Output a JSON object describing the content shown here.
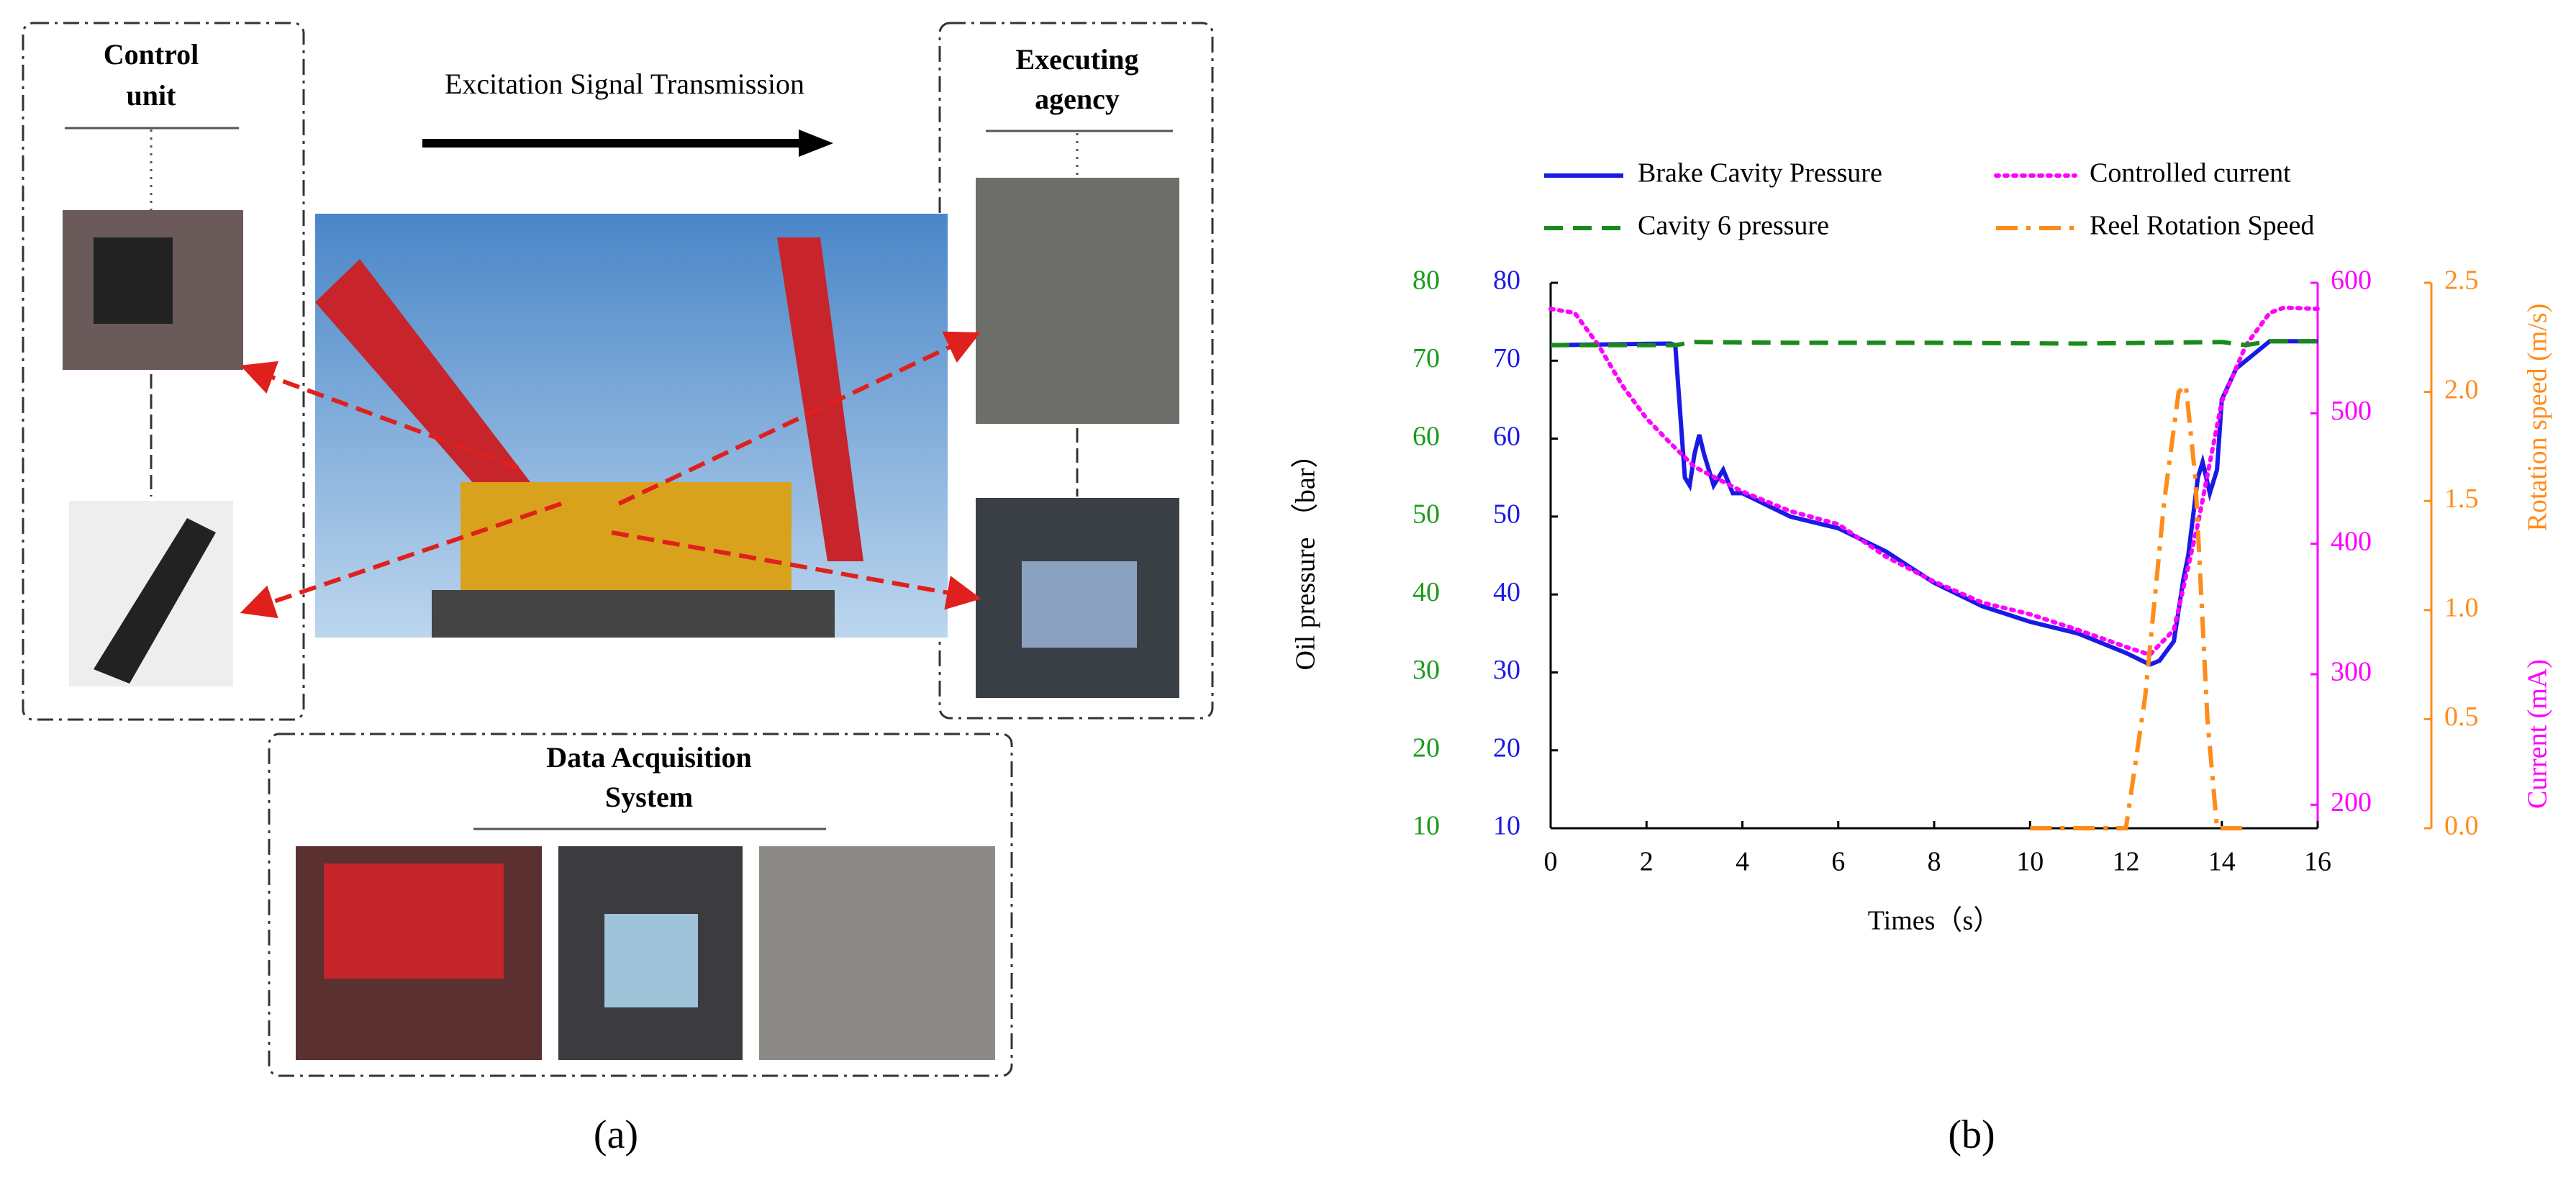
{
  "diagram": {
    "control_unit": [
      "Control",
      "unit"
    ],
    "transmission": "Excitation Signal Transmission",
    "executing_agency": [
      "Executing",
      "agency"
    ],
    "data_acquisition": [
      "Data Acquisition",
      "System"
    ],
    "label_a": "(a)",
    "label_b": "(b)"
  },
  "chart_data": {
    "type": "line",
    "xlabel": "Times（s）",
    "ylabel": "Oil pressure （bar）",
    "y2label": "Current (mA)",
    "y3label": "Rotation speed (m/s)",
    "xlim": [
      0,
      16
    ],
    "xticks": [
      0,
      2,
      4,
      6,
      8,
      10,
      12,
      14,
      16
    ],
    "ylim": [
      10,
      80
    ],
    "yticks": [
      10,
      20,
      30,
      40,
      50,
      60,
      70,
      80
    ],
    "yaxis_colors": [
      "#1a9a1a",
      "#1a1ae6"
    ],
    "y2lim": [
      182,
      600
    ],
    "y2ticks": [
      200,
      300,
      400,
      500,
      600
    ],
    "y2color": "#ff00ff",
    "y3lim": [
      0,
      2.5
    ],
    "y3ticks": [
      {
        "value": 0,
        "label": "0.0"
      },
      {
        "value": 0.5,
        "label": "0.5"
      },
      {
        "value": 1,
        "label": "1.0"
      },
      {
        "value": 1.5,
        "label": "1.5"
      },
      {
        "value": 2,
        "label": "2.0"
      },
      {
        "value": 2.5,
        "label": "2.5"
      }
    ],
    "y3color": "#ff8c1a",
    "series": [
      {
        "name": "Brake Cavity Pressure",
        "color": "#1a1ae6",
        "dash": "solid",
        "axis": "y",
        "x": [
          0,
          2.5,
          2.6,
          2.8,
          2.9,
          3.0,
          3.1,
          3.2,
          3.4,
          3.6,
          3.8,
          4,
          5,
          6,
          7,
          8,
          9,
          10,
          11,
          12,
          12.5,
          12.7,
          13,
          13.2,
          13.3,
          13.5,
          13.6,
          13.75,
          13.9,
          14,
          14.3,
          15,
          16
        ],
        "values": [
          72,
          72.2,
          72,
          55,
          54,
          58,
          60.5,
          58,
          54,
          56,
          53,
          53,
          50,
          48.5,
          45.5,
          41.5,
          38.5,
          36.5,
          35,
          32.5,
          31,
          31.5,
          34,
          42,
          45,
          55,
          57,
          53,
          56,
          65,
          69,
          72.5,
          72.5
        ]
      },
      {
        "name": "Controlled current",
        "color": "#ff00ff",
        "dash": "dotted",
        "axis": "y2",
        "x": [
          0,
          0.5,
          1,
          1.5,
          2,
          2.5,
          3,
          4,
          5,
          6,
          7,
          8,
          9,
          10,
          11,
          12,
          12.5,
          13,
          13.5,
          14,
          14.5,
          15,
          15.3,
          16
        ],
        "values": [
          580,
          577,
          552,
          521,
          496,
          477,
          459,
          440,
          425,
          415,
          390,
          371,
          355,
          346,
          334,
          321,
          315,
          334,
          415,
          509,
          552,
          577,
          581,
          580
        ]
      },
      {
        "name": "Cavity 6 pressure",
        "color": "#1a8a1a",
        "dash": "dashed",
        "axis": "y",
        "x": [
          0,
          2,
          2.6,
          3,
          5,
          8,
          11,
          14,
          14.5,
          15,
          16
        ],
        "values": [
          72,
          72,
          72,
          72.4,
          72.3,
          72.3,
          72.2,
          72.4,
          72,
          72.5,
          72.5
        ]
      },
      {
        "name": "Reel Rotation Speed",
        "color": "#ff8c1a",
        "dash": "dashdot",
        "axis": "y3",
        "x": [
          10,
          12,
          12.4,
          12.8,
          13.1,
          13.25,
          13.45,
          13.7,
          13.9,
          14.5
        ],
        "values": [
          0,
          0,
          0.6,
          1.5,
          2.0,
          2.03,
          1.6,
          0.5,
          0,
          0
        ]
      }
    ]
  }
}
